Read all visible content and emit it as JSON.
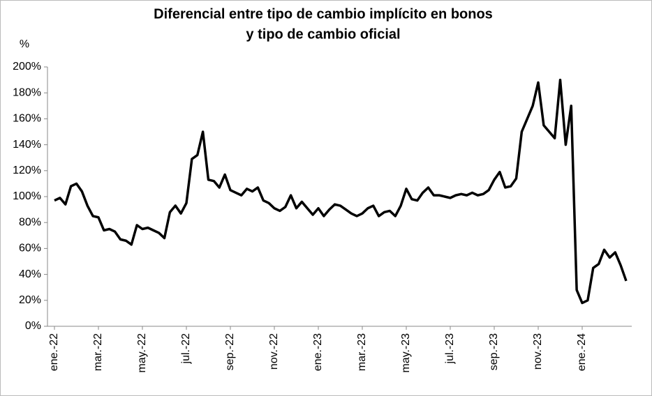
{
  "chart_data": {
    "type": "line",
    "title": [
      "Diferencial entre tipo de cambio implícito en bonos",
      "y tipo de cambio oficial"
    ],
    "y_label": "%",
    "categories": [
      "ene.-22",
      null,
      null,
      null,
      null,
      null,
      null,
      null,
      "mar.-22",
      null,
      null,
      null,
      null,
      null,
      null,
      null,
      "may.-22",
      null,
      null,
      null,
      null,
      null,
      null,
      null,
      "jul.-22",
      null,
      null,
      null,
      null,
      null,
      null,
      null,
      "sep.-22",
      null,
      null,
      null,
      null,
      null,
      null,
      null,
      "nov.-22",
      null,
      null,
      null,
      null,
      null,
      null,
      null,
      "ene.-23",
      null,
      null,
      null,
      null,
      null,
      null,
      null,
      "mar.-23",
      null,
      null,
      null,
      null,
      null,
      null,
      null,
      "may.-23",
      null,
      null,
      null,
      null,
      null,
      null,
      null,
      "jul.-23",
      null,
      null,
      null,
      null,
      null,
      null,
      null,
      "sep.-23",
      null,
      null,
      null,
      null,
      null,
      null,
      null,
      "nov.-23",
      null,
      null,
      null,
      null,
      null,
      null,
      null,
      "ene.-24",
      null,
      null,
      null,
      null,
      null,
      null,
      null,
      null
    ],
    "series": [
      {
        "color": "#000000",
        "values": [
          97,
          99,
          94,
          108,
          110,
          104,
          93,
          85,
          84,
          74,
          75,
          73,
          67,
          66,
          63,
          78,
          75,
          76,
          74,
          72,
          68,
          88,
          93,
          87,
          95,
          129,
          132,
          150,
          113,
          112,
          107,
          117,
          105,
          103,
          101,
          106,
          104,
          107,
          97,
          95,
          91,
          89,
          92,
          101,
          91,
          96,
          91,
          86,
          91,
          85,
          90,
          94,
          93,
          90,
          87,
          85,
          87,
          91,
          93,
          85,
          88,
          89,
          85,
          93,
          106,
          98,
          97,
          103,
          107,
          101,
          101,
          100,
          99,
          101,
          102,
          101,
          103,
          101,
          102,
          105,
          113,
          119,
          107,
          108,
          114,
          150,
          160,
          170,
          188,
          155,
          150,
          145,
          190,
          140,
          170,
          28,
          18,
          20,
          45,
          48,
          59,
          53,
          57,
          47,
          35
        ]
      }
    ],
    "ylim": [
      0,
      200
    ],
    "yticks": [
      {
        "value": 0,
        "label": "0%"
      },
      {
        "value": 20,
        "label": "20%"
      },
      {
        "value": 40,
        "label": "40%"
      },
      {
        "value": 60,
        "label": "60%"
      },
      {
        "value": 80,
        "label": "80%"
      },
      {
        "value": 100,
        "label": "100%"
      },
      {
        "value": 120,
        "label": "120%"
      },
      {
        "value": 140,
        "label": "140%"
      },
      {
        "value": 160,
        "label": "160%"
      },
      {
        "value": 180,
        "label": "180%"
      },
      {
        "value": 200,
        "label": "200%"
      }
    ],
    "grid": false
  }
}
